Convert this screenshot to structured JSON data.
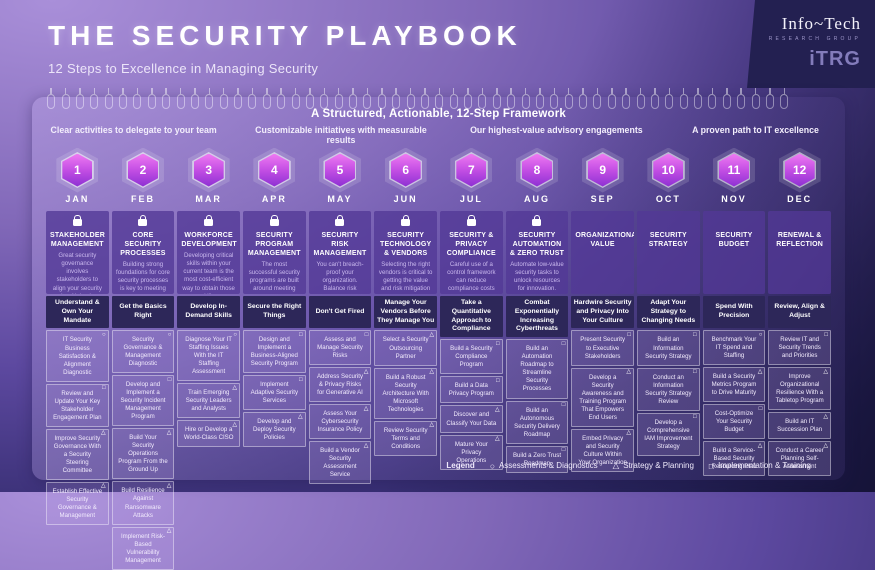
{
  "page": {
    "title": "THE SECURITY PLAYBOOK",
    "subtitle": "12 Steps to Excellence in Managing Security",
    "logo": {
      "brand": "Info~Tech",
      "brand_sub": "RESEARCH GROUP",
      "brand_mark": "iTRG"
    }
  },
  "framework": {
    "heading": "A Structured, Actionable, 12-Step Framework",
    "benefits": [
      "Clear activities to delegate to your team",
      "Customizable initiatives with measurable results",
      "Our highest-value advisory engagements",
      "A proven path to IT excellence"
    ]
  },
  "colors": {
    "background_light": "#a98fd9",
    "background_dark": "#2b2766",
    "corner_navy": "#232051",
    "hexagon_top": "#ee79f2",
    "hexagon_bottom": "#8c30d2",
    "category_card": "#523996",
    "theme_card": "#2d2759"
  },
  "legend": {
    "label": "Legend",
    "items": [
      {
        "icon": "circle",
        "label": "Assessments & Diagnostics"
      },
      {
        "icon": "triangle",
        "label": "Strategy & Planning"
      },
      {
        "icon": "square",
        "label": "Implementation & Training"
      }
    ]
  },
  "months": [
    {
      "num": "1",
      "month": "JAN",
      "locked": true,
      "category": "STAKEHOLDER MANAGEMENT",
      "description": "Great security governance involves stakeholders to align your security goals with business expectations.",
      "theme": "Understand & Own Your Mandate",
      "tasks": [
        {
          "label": "IT Security Business Satisfaction & Alignment Diagnostic",
          "type": "circle"
        },
        {
          "label": "Review and Update Your Key Stakeholder Engagement Plan",
          "type": "square"
        },
        {
          "label": "Improve Security Governance With a Security Steering Committee",
          "type": "triangle"
        },
        {
          "label": "Establish Effective Security Governance & Management",
          "type": "triangle"
        }
      ]
    },
    {
      "num": "2",
      "month": "FEB",
      "locked": true,
      "category": "CORE SECURITY PROCESSES",
      "description": "Building strong foundations for core security processes is key to meeting future threats.",
      "theme": "Get the Basics Right",
      "tasks": [
        {
          "label": "Security Governance & Management Diagnostic",
          "type": "circle"
        },
        {
          "label": "Develop and Implement a Security Incident Management Program",
          "type": "square"
        },
        {
          "label": "Build Your Security Operations Program From the Ground Up",
          "type": "triangle"
        },
        {
          "label": "Build Resilience Against Ransomware Attacks",
          "type": "triangle"
        },
        {
          "label": "Implement Risk-Based Vulnerability Management",
          "type": "triangle"
        }
      ]
    },
    {
      "num": "3",
      "month": "MAR",
      "locked": true,
      "category": "WORKFORCE DEVELOPMENT",
      "description": "Developing critical skills within your current team is the most cost-efficient way to obtain those skills.",
      "theme": "Develop In-Demand Skills",
      "tasks": [
        {
          "label": "Diagnose Your IT Staffing Issues With the IT Staffing Assessment",
          "type": "circle"
        },
        {
          "label": "Train Emerging Security Leaders and Analysts",
          "type": "triangle"
        },
        {
          "label": "Hire or Develop a World-Class CISO",
          "type": "triangle"
        }
      ]
    },
    {
      "num": "4",
      "month": "APR",
      "locked": true,
      "category": "SECURITY PROGRAM MANAGEMENT",
      "description": "The most successful security programs are built around meeting business needs.",
      "theme": "Secure the Right Things",
      "tasks": [
        {
          "label": "Design and Implement a Business-Aligned Security Program",
          "type": "square"
        },
        {
          "label": "Implement Adaptive Security Services",
          "type": "square"
        },
        {
          "label": "Develop and Deploy Security Policies",
          "type": "triangle"
        }
      ]
    },
    {
      "num": "5",
      "month": "MAY",
      "locked": true,
      "category": "SECURITY RISK MANAGEMENT",
      "description": "You can't breach-proof your organization. Balance risk tolerance, prevention, and budget.",
      "theme": "Don't Get Fired",
      "tasks": [
        {
          "label": "Assess and Manage Security Risks",
          "type": "square"
        },
        {
          "label": "Address Security & Privacy Risks for Generative AI",
          "type": "triangle"
        },
        {
          "label": "Assess Your Cybersecurity Insurance Policy",
          "type": "triangle"
        },
        {
          "label": "Build a Vendor Security Assessment Service",
          "type": "triangle"
        }
      ]
    },
    {
      "num": "6",
      "month": "JUN",
      "locked": true,
      "category": "SECURITY TECHNOLOGY & VENDORS",
      "description": "Selecting the right vendors is critical to getting the value and risk mitigation you need.",
      "theme": "Manage Your Vendors Before They Manage You",
      "tasks": [
        {
          "label": "Select a Security Outsourcing Partner",
          "type": "triangle"
        },
        {
          "label": "Build a Robust Security Architecture With Microsoft Technologies",
          "type": "triangle"
        },
        {
          "label": "Review Security Terms and Conditions",
          "type": "triangle"
        }
      ]
    },
    {
      "num": "7",
      "month": "JUL",
      "locked": true,
      "category": "SECURITY & PRIVACY COMPLIANCE",
      "description": "Careful use of a control framework can reduce compliance costs and complexities.",
      "theme": "Take a Quantitative Approach to Compliance",
      "tasks": [
        {
          "label": "Build a Security Compliance Program",
          "type": "square"
        },
        {
          "label": "Build a Data Privacy Program",
          "type": "square"
        },
        {
          "label": "Discover and Classify Your Data",
          "type": "triangle"
        },
        {
          "label": "Mature Your Privacy Operations",
          "type": "triangle"
        }
      ]
    },
    {
      "num": "8",
      "month": "AUG",
      "locked": true,
      "category": "SECURITY AUTOMATION & ZERO TRUST",
      "description": "Automate low-value security tasks to unlock resources for innovation.",
      "theme": "Combat Exponentially Increasing Cyberthreats",
      "tasks": [
        {
          "label": "Build an Automation Roadmap to Streamline Security Processes",
          "type": "square"
        },
        {
          "label": "Build an Autonomous Security Delivery Roadmap",
          "type": "square"
        },
        {
          "label": "Build a Zero Trust Roadmap",
          "type": "square"
        }
      ]
    },
    {
      "num": "9",
      "month": "SEP",
      "locked": false,
      "category": "ORGANIZATIONAL VALUE",
      "description": "",
      "theme": "Hardwire Security and Privacy Into Your Culture",
      "tasks": [
        {
          "label": "Present Security to Executive Stakeholders",
          "type": "square"
        },
        {
          "label": "Develop a Security Awareness and Training Program That Empowers End Users",
          "type": "triangle"
        },
        {
          "label": "Embed Privacy and Security Culture Within Your Organization",
          "type": "triangle"
        }
      ]
    },
    {
      "num": "10",
      "month": "OCT",
      "locked": false,
      "category": "SECURITY STRATEGY",
      "description": "",
      "theme": "Adapt Your Strategy to Changing Needs",
      "tasks": [
        {
          "label": "Build an Information Security Strategy",
          "type": "square"
        },
        {
          "label": "Conduct an Information Security Strategy Review",
          "type": "square"
        },
        {
          "label": "Develop a Comprehensive IAM Improvement Strategy",
          "type": "square"
        }
      ]
    },
    {
      "num": "11",
      "month": "NOV",
      "locked": false,
      "category": "SECURITY BUDGET",
      "description": "",
      "theme": "Spend With Precision",
      "tasks": [
        {
          "label": "Benchmark Your IT Spend and Staffing",
          "type": "circle"
        },
        {
          "label": "Build a Security Metrics Program to Drive Maturity",
          "type": "triangle"
        },
        {
          "label": "Cost-Optimize Your Security Budget",
          "type": "square"
        },
        {
          "label": "Build a Service-Based Security Resourcing Plan",
          "type": "triangle"
        }
      ]
    },
    {
      "num": "12",
      "month": "DEC",
      "locked": false,
      "category": "RENEWAL & REFLECTION",
      "description": "",
      "theme": "Review, Align & Adjust",
      "tasks": [
        {
          "label": "Review IT and Security Trends and Priorities",
          "type": "square"
        },
        {
          "label": "Improve Organizational Resilience With a Tabletop Program",
          "type": "triangle"
        },
        {
          "label": "Build an IT Succession Plan",
          "type": "triangle"
        },
        {
          "label": "Conduct a Career Planning Self-Assessment",
          "type": "triangle"
        }
      ]
    }
  ]
}
